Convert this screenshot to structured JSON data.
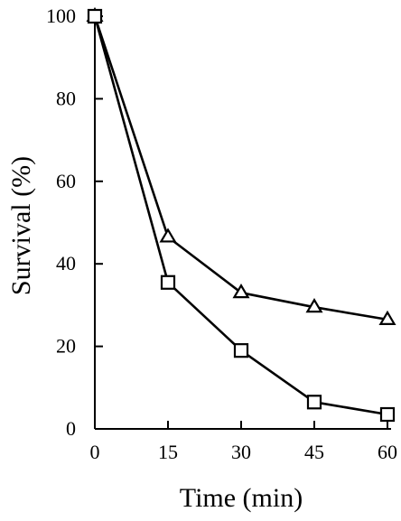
{
  "chart_data": {
    "type": "line",
    "title": "",
    "xlabel": "Time (min)",
    "ylabel": "Survival (%)",
    "x": [
      0,
      15,
      30,
      45,
      60
    ],
    "xlim": [
      0,
      60
    ],
    "ylim": [
      0,
      100
    ],
    "xticks": [
      0,
      15,
      30,
      45,
      60
    ],
    "yticks": [
      0,
      20,
      40,
      60,
      80,
      100
    ],
    "grid": false,
    "legend": "none",
    "series": [
      {
        "marker": "triangle",
        "values": [
          100,
          46.5,
          33,
          29.5,
          26.5
        ]
      },
      {
        "marker": "square",
        "values": [
          100,
          35.5,
          19,
          6.5,
          3.5
        ]
      }
    ],
    "colors": {
      "line": "#000000",
      "marker_fill": "#ffffff",
      "axis": "#000000"
    }
  }
}
